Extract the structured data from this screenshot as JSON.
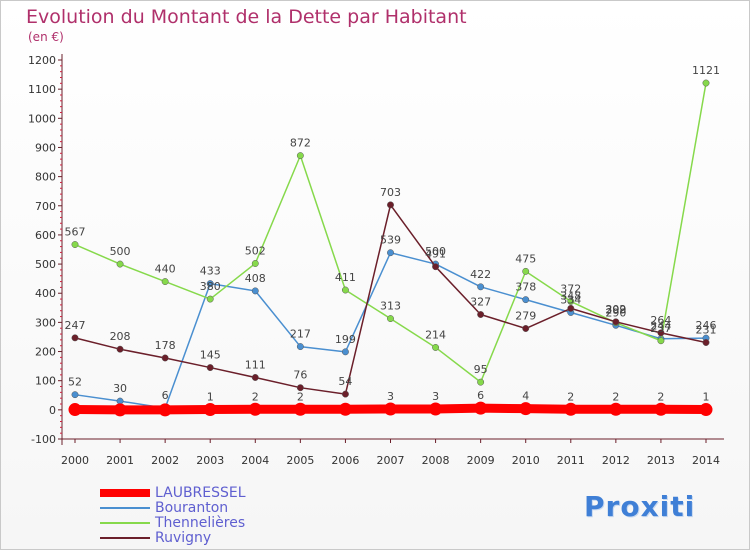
{
  "header": {
    "title": "Evolution du Montant de la Dette par Habitant",
    "subtitle": "(en €)"
  },
  "brand": {
    "text": "Proxiti"
  },
  "chart_data": {
    "type": "line",
    "x": [
      "2000",
      "2001",
      "2002",
      "2003",
      "2004",
      "2005",
      "2006",
      "2007",
      "2008",
      "2009",
      "2010",
      "2011",
      "2012",
      "2013",
      "2014"
    ],
    "ylim": [
      -100,
      1200
    ],
    "yticks": [
      -100,
      0,
      100,
      200,
      300,
      400,
      500,
      600,
      700,
      800,
      900,
      1000,
      1100,
      1200
    ],
    "grid": false,
    "legend": "bottom-left",
    "series": [
      {
        "name": "Bouranton",
        "color": "#4a8fd0",
        "values": [
          52,
          30,
          6,
          433,
          408,
          217,
          199,
          539,
          500,
          422,
          378,
          334,
          290,
          244,
          246
        ],
        "labels": [
          "52",
          "30",
          "6",
          "433",
          "408",
          "217",
          "199",
          "539",
          "500",
          "422",
          "378",
          "334",
          "290",
          "244",
          "246"
        ]
      },
      {
        "name": "Thennelières",
        "color": "#86d94b",
        "values": [
          567,
          500,
          440,
          380,
          502,
          872,
          411,
          313,
          214,
          95,
          475,
          372,
          299,
          237,
          1121
        ],
        "labels": [
          "567",
          "500",
          "440",
          "380",
          "502",
          "872",
          "411",
          "313",
          "214",
          "95",
          "475",
          "372",
          "299",
          "237",
          "1121"
        ]
      },
      {
        "name": "Ruvigny",
        "color": "#6b1f2a",
        "values": [
          247,
          208,
          178,
          145,
          111,
          76,
          54,
          703,
          491,
          327,
          279,
          348,
          302,
          264,
          231
        ],
        "labels": [
          "247",
          "208",
          "178",
          "145",
          "111",
          "76",
          "54",
          "703",
          "491",
          "327",
          "279",
          "348",
          "302",
          "264",
          "231"
        ]
      },
      {
        "name": "LAUBRESSEL",
        "color": "#ff0000",
        "values": [
          1,
          0,
          0,
          1,
          2,
          2,
          2,
          3,
          3,
          6,
          4,
          2,
          2,
          2,
          1
        ],
        "labels": [
          "",
          "",
          "",
          "1",
          "2",
          "2",
          "",
          "3",
          "3",
          "6",
          "4",
          "2",
          "2",
          "2",
          "1"
        ]
      }
    ]
  }
}
